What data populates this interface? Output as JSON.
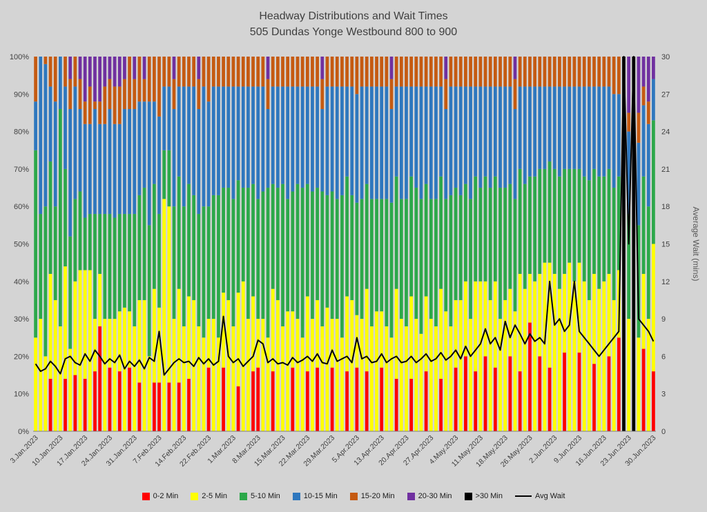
{
  "colors": {
    "background": "#D4D4D4",
    "title_text": "#3F3F3F",
    "axis_text": "#3F3F3F",
    "axis_title_text": "#595959"
  },
  "chart_data": {
    "type": "bar",
    "stacked": true,
    "percent": true,
    "line_overlay": true,
    "title": "Headway Distributions and Wait Times",
    "subtitle": "505 Dundas  Yonge Westbound 800 to 900",
    "legend_position": "bottom",
    "y_left": {
      "label": "",
      "range": [
        0,
        100
      ],
      "ticks": [
        "0%",
        "10%",
        "20%",
        "30%",
        "40%",
        "50%",
        "60%",
        "70%",
        "80%",
        "90%",
        "100%"
      ]
    },
    "y_right": {
      "label": "Average Wait (mins)",
      "range": [
        0,
        30
      ],
      "ticks": [
        0,
        3,
        6,
        9,
        12,
        15,
        18,
        21,
        24,
        27,
        30
      ]
    },
    "x_tick_labels": [
      "3.Jan.2023",
      "10.Jan.2023",
      "17.Jan.2023",
      "24.Jan.2023",
      "31.Jan.2023",
      "7.Feb.2023",
      "14.Feb.2023",
      "22.Feb.2023",
      "1.Mar.2023",
      "8.Mar.2023",
      "15.Mar.2023",
      "22.Mar.2023",
      "29.Mar.2023",
      "5.Apr.2023",
      "13.Apr.2023",
      "20.Apr.2023",
      "27.Apr.2023",
      "4.May.2023",
      "11.May.2023",
      "18.May.2023",
      "26.May.2023",
      "2.Jun.2023",
      "9.Jun.2023",
      "16.Jun.2023",
      "23.Jun.2023",
      "30.Jun.2023"
    ],
    "categories": [
      "3.Jan.2023",
      "4.Jan.2023",
      "5.Jan.2023",
      "6.Jan.2023",
      "9.Jan.2023",
      "10.Jan.2023",
      "11.Jan.2023",
      "12.Jan.2023",
      "13.Jan.2023",
      "16.Jan.2023",
      "17.Jan.2023",
      "18.Jan.2023",
      "19.Jan.2023",
      "20.Jan.2023",
      "23.Jan.2023",
      "24.Jan.2023",
      "25.Jan.2023",
      "26.Jan.2023",
      "27.Jan.2023",
      "30.Jan.2023",
      "31.Jan.2023",
      "1.Feb.2023",
      "2.Feb.2023",
      "3.Feb.2023",
      "6.Feb.2023",
      "7.Feb.2023",
      "8.Feb.2023",
      "9.Feb.2023",
      "10.Feb.2023",
      "13.Feb.2023",
      "14.Feb.2023",
      "15.Feb.2023",
      "16.Feb.2023",
      "17.Feb.2023",
      "21.Feb.2023",
      "22.Feb.2023",
      "23.Feb.2023",
      "24.Feb.2023",
      "27.Feb.2023",
      "28.Feb.2023",
      "1.Mar.2023",
      "2.Mar.2023",
      "3.Mar.2023",
      "6.Mar.2023",
      "7.Mar.2023",
      "8.Mar.2023",
      "9.Mar.2023",
      "10.Mar.2023",
      "13.Mar.2023",
      "14.Mar.2023",
      "15.Mar.2023",
      "16.Mar.2023",
      "17.Mar.2023",
      "20.Mar.2023",
      "21.Mar.2023",
      "22.Mar.2023",
      "23.Mar.2023",
      "24.Mar.2023",
      "27.Mar.2023",
      "28.Mar.2023",
      "29.Mar.2023",
      "30.Mar.2023",
      "31.Mar.2023",
      "3.Apr.2023",
      "4.Apr.2023",
      "5.Apr.2023",
      "6.Apr.2023",
      "10.Apr.2023",
      "11.Apr.2023",
      "12.Apr.2023",
      "13.Apr.2023",
      "14.Apr.2023",
      "17.Apr.2023",
      "18.Apr.2023",
      "19.Apr.2023",
      "20.Apr.2023",
      "21.Apr.2023",
      "24.Apr.2023",
      "25.Apr.2023",
      "26.Apr.2023",
      "27.Apr.2023",
      "28.Apr.2023",
      "1.May.2023",
      "2.May.2023",
      "3.May.2023",
      "4.May.2023",
      "5.May.2023",
      "8.May.2023",
      "9.May.2023",
      "10.May.2023",
      "11.May.2023",
      "12.May.2023",
      "15.May.2023",
      "16.May.2023",
      "17.May.2023",
      "18.May.2023",
      "19.May.2023",
      "23.May.2023",
      "24.May.2023",
      "25.May.2023",
      "26.May.2023",
      "29.May.2023",
      "30.May.2023",
      "31.May.2023",
      "1.Jun.2023",
      "2.Jun.2023",
      "5.Jun.2023",
      "6.Jun.2023",
      "7.Jun.2023",
      "8.Jun.2023",
      "9.Jun.2023",
      "12.Jun.2023",
      "13.Jun.2023",
      "14.Jun.2023",
      "15.Jun.2023",
      "16.Jun.2023",
      "19.Jun.2023",
      "20.Jun.2023",
      "21.Jun.2023",
      "22.Jun.2023",
      "23.Jun.2023",
      "26.Jun.2023",
      "27.Jun.2023",
      "28.Jun.2023",
      "29.Jun.2023",
      "30.Jun.2023"
    ],
    "series": [
      {
        "key": "0-2-min",
        "name": "0-2 Min",
        "color": "#FF0000"
      },
      {
        "key": "2-5-min",
        "name": "2-5 Min",
        "color": "#FFFF00"
      },
      {
        "key": "5-10-min",
        "name": "5-10 Min",
        "color": "#2CA84A"
      },
      {
        "key": "10-15-min",
        "name": "10-15 Min",
        "color": "#2E77BE"
      },
      {
        "key": "15-20-min",
        "name": "15-20 Min",
        "color": "#C55A11"
      },
      {
        "key": "20-30-min",
        "name": "20-30 Min",
        "color": "#7030A0"
      },
      {
        "key": "gt-30-min",
        "name": ">30 Min",
        "color": "#000000"
      }
    ],
    "stacks": [
      [
        0,
        25,
        50,
        13,
        12,
        0,
        0
      ],
      [
        0,
        30,
        28,
        42,
        0,
        0,
        0
      ],
      [
        0,
        20,
        40,
        38,
        2,
        0,
        0
      ],
      [
        14,
        28,
        30,
        20,
        8,
        0,
        0
      ],
      [
        0,
        35,
        25,
        28,
        12,
        0,
        0
      ],
      [
        0,
        28,
        58,
        14,
        0,
        0,
        0
      ],
      [
        14,
        30,
        26,
        22,
        8,
        0,
        0
      ],
      [
        0,
        22,
        30,
        34,
        8,
        6,
        0
      ],
      [
        15,
        25,
        22,
        30,
        8,
        0,
        0
      ],
      [
        0,
        43,
        21,
        22,
        8,
        6,
        0
      ],
      [
        14,
        29,
        14,
        25,
        6,
        12,
        0
      ],
      [
        0,
        43,
        15,
        24,
        10,
        8,
        0
      ],
      [
        16,
        14,
        28,
        28,
        2,
        12,
        0
      ],
      [
        28,
        14,
        16,
        24,
        6,
        12,
        0
      ],
      [
        0,
        30,
        28,
        24,
        10,
        8,
        0
      ],
      [
        17,
        13,
        28,
        28,
        8,
        6,
        0
      ],
      [
        0,
        30,
        27,
        25,
        10,
        8,
        0
      ],
      [
        16,
        16,
        26,
        24,
        10,
        8,
        0
      ],
      [
        0,
        33,
        25,
        28,
        8,
        6,
        0
      ],
      [
        17,
        15,
        26,
        28,
        14,
        0,
        0
      ],
      [
        0,
        28,
        30,
        28,
        8,
        6,
        0
      ],
      [
        13,
        22,
        28,
        25,
        12,
        0,
        0
      ],
      [
        0,
        35,
        30,
        23,
        6,
        6,
        0
      ],
      [
        0,
        20,
        35,
        33,
        12,
        0,
        0
      ],
      [
        13,
        25,
        28,
        22,
        12,
        0,
        0
      ],
      [
        13,
        20,
        25,
        26,
        16,
        0,
        0
      ],
      [
        0,
        62,
        13,
        17,
        8,
        0,
        0
      ],
      [
        13,
        47,
        15,
        17,
        8,
        0,
        0
      ],
      [
        0,
        30,
        30,
        26,
        8,
        6,
        0
      ],
      [
        13,
        25,
        30,
        24,
        8,
        0,
        0
      ],
      [
        0,
        28,
        32,
        32,
        8,
        0,
        0
      ],
      [
        14,
        22,
        30,
        26,
        8,
        0,
        0
      ],
      [
        0,
        35,
        28,
        29,
        8,
        0,
        0
      ],
      [
        0,
        28,
        30,
        28,
        8,
        6,
        0
      ],
      [
        0,
        25,
        35,
        32,
        8,
        0,
        0
      ],
      [
        17,
        13,
        30,
        28,
        12,
        0,
        0
      ],
      [
        0,
        30,
        33,
        29,
        8,
        0,
        0
      ],
      [
        0,
        25,
        38,
        29,
        8,
        0,
        0
      ],
      [
        17,
        20,
        28,
        27,
        8,
        0,
        0
      ],
      [
        0,
        35,
        30,
        27,
        8,
        0,
        0
      ],
      [
        0,
        28,
        34,
        30,
        8,
        0,
        0
      ],
      [
        12,
        25,
        30,
        25,
        8,
        0,
        0
      ],
      [
        0,
        40,
        25,
        27,
        8,
        0,
        0
      ],
      [
        0,
        30,
        35,
        27,
        8,
        0,
        0
      ],
      [
        16,
        20,
        30,
        26,
        8,
        0,
        0
      ],
      [
        17,
        13,
        32,
        30,
        8,
        0,
        0
      ],
      [
        0,
        30,
        34,
        28,
        8,
        0,
        0
      ],
      [
        0,
        25,
        40,
        21,
        8,
        6,
        0
      ],
      [
        16,
        22,
        28,
        26,
        8,
        0,
        0
      ],
      [
        0,
        35,
        30,
        27,
        8,
        0,
        0
      ],
      [
        0,
        28,
        38,
        26,
        8,
        0,
        0
      ],
      [
        0,
        32,
        30,
        30,
        8,
        0,
        0
      ],
      [
        17,
        15,
        32,
        28,
        8,
        0,
        0
      ],
      [
        0,
        30,
        36,
        26,
        8,
        0,
        0
      ],
      [
        0,
        25,
        40,
        27,
        8,
        0,
        0
      ],
      [
        16,
        20,
        30,
        26,
        8,
        0,
        0
      ],
      [
        0,
        30,
        34,
        28,
        8,
        0,
        0
      ],
      [
        17,
        18,
        30,
        27,
        8,
        0,
        0
      ],
      [
        0,
        28,
        36,
        22,
        8,
        6,
        0
      ],
      [
        0,
        33,
        30,
        29,
        8,
        0,
        0
      ],
      [
        17,
        13,
        34,
        28,
        8,
        0,
        0
      ],
      [
        0,
        30,
        32,
        30,
        8,
        0,
        0
      ],
      [
        0,
        25,
        38,
        29,
        8,
        0,
        0
      ],
      [
        16,
        20,
        32,
        24,
        8,
        0,
        0
      ],
      [
        0,
        35,
        28,
        29,
        8,
        0,
        0
      ],
      [
        17,
        14,
        30,
        29,
        10,
        0,
        0
      ],
      [
        0,
        30,
        32,
        30,
        8,
        0,
        0
      ],
      [
        16,
        22,
        28,
        26,
        8,
        0,
        0
      ],
      [
        0,
        28,
        34,
        30,
        8,
        0,
        0
      ],
      [
        0,
        32,
        30,
        30,
        8,
        0,
        0
      ],
      [
        17,
        15,
        30,
        30,
        8,
        0,
        0
      ],
      [
        0,
        28,
        34,
        30,
        8,
        0,
        0
      ],
      [
        0,
        25,
        36,
        25,
        8,
        6,
        0
      ],
      [
        14,
        24,
        30,
        24,
        8,
        0,
        0
      ],
      [
        0,
        30,
        32,
        30,
        8,
        0,
        0
      ],
      [
        0,
        28,
        34,
        30,
        8,
        0,
        0
      ],
      [
        14,
        22,
        32,
        24,
        8,
        0,
        0
      ],
      [
        0,
        30,
        35,
        27,
        8,
        0,
        0
      ],
      [
        0,
        26,
        36,
        30,
        8,
        0,
        0
      ],
      [
        16,
        20,
        30,
        26,
        8,
        0,
        0
      ],
      [
        0,
        30,
        32,
        30,
        8,
        0,
        0
      ],
      [
        0,
        28,
        34,
        30,
        8,
        0,
        0
      ],
      [
        14,
        24,
        30,
        24,
        8,
        0,
        0
      ],
      [
        0,
        32,
        30,
        24,
        8,
        6,
        0
      ],
      [
        0,
        28,
        35,
        29,
        8,
        0,
        0
      ],
      [
        17,
        18,
        30,
        27,
        8,
        0,
        0
      ],
      [
        0,
        35,
        28,
        29,
        8,
        0,
        0
      ],
      [
        20,
        20,
        26,
        26,
        8,
        0,
        0
      ],
      [
        0,
        30,
        32,
        30,
        8,
        0,
        0
      ],
      [
        16,
        24,
        28,
        24,
        8,
        0,
        0
      ],
      [
        0,
        40,
        25,
        27,
        8,
        0,
        0
      ],
      [
        20,
        20,
        28,
        24,
        8,
        0,
        0
      ],
      [
        0,
        35,
        30,
        27,
        8,
        0,
        0
      ],
      [
        17,
        23,
        28,
        24,
        8,
        0,
        0
      ],
      [
        0,
        30,
        35,
        27,
        8,
        0,
        0
      ],
      [
        0,
        35,
        30,
        27,
        8,
        0,
        0
      ],
      [
        20,
        18,
        28,
        26,
        8,
        0,
        0
      ],
      [
        0,
        32,
        30,
        24,
        8,
        6,
        0
      ],
      [
        16,
        26,
        28,
        22,
        8,
        0,
        0
      ],
      [
        0,
        38,
        28,
        26,
        8,
        0,
        0
      ],
      [
        29,
        13,
        26,
        24,
        8,
        0,
        0
      ],
      [
        0,
        40,
        28,
        24,
        8,
        0,
        0
      ],
      [
        20,
        22,
        28,
        22,
        8,
        0,
        0
      ],
      [
        0,
        45,
        25,
        22,
        8,
        0,
        0
      ],
      [
        17,
        28,
        27,
        20,
        8,
        0,
        0
      ],
      [
        0,
        42,
        28,
        22,
        8,
        0,
        0
      ],
      [
        0,
        38,
        30,
        24,
        8,
        0,
        0
      ],
      [
        21,
        21,
        28,
        22,
        8,
        0,
        0
      ],
      [
        0,
        45,
        25,
        22,
        8,
        0,
        0
      ],
      [
        0,
        40,
        30,
        22,
        8,
        0,
        0
      ],
      [
        21,
        24,
        25,
        22,
        8,
        0,
        0
      ],
      [
        0,
        40,
        28,
        24,
        8,
        0,
        0
      ],
      [
        0,
        35,
        32,
        25,
        8,
        0,
        0
      ],
      [
        18,
        24,
        28,
        22,
        8,
        0,
        0
      ],
      [
        0,
        38,
        30,
        24,
        8,
        0,
        0
      ],
      [
        0,
        40,
        28,
        24,
        8,
        0,
        0
      ],
      [
        20,
        22,
        28,
        22,
        8,
        0,
        0
      ],
      [
        0,
        35,
        30,
        25,
        10,
        0,
        0
      ],
      [
        25,
        18,
        25,
        22,
        10,
        0,
        0
      ],
      [
        0,
        0,
        0,
        0,
        0,
        0,
        100
      ],
      [
        0,
        30,
        28,
        22,
        5,
        15,
        0
      ],
      [
        0,
        0,
        0,
        0,
        0,
        0,
        100
      ],
      [
        0,
        25,
        30,
        22,
        8,
        15,
        0
      ],
      [
        22,
        20,
        26,
        19,
        5,
        8,
        0
      ],
      [
        0,
        30,
        30,
        22,
        6,
        12,
        0
      ],
      [
        16,
        34,
        33,
        11,
        0,
        6,
        0
      ]
    ],
    "line_series": {
      "name": "Avg Wait",
      "color": "#000000",
      "values": [
        5.4,
        4.8,
        5.0,
        5.6,
        5.2,
        4.6,
        5.8,
        6.0,
        5.5,
        5.3,
        6.2,
        5.6,
        6.5,
        6.0,
        5.4,
        5.8,
        5.5,
        6.1,
        5.0,
        5.6,
        5.2,
        5.7,
        5.0,
        5.9,
        5.6,
        8.0,
        4.5,
        5.0,
        5.5,
        5.8,
        5.5,
        5.6,
        5.2,
        5.9,
        5.4,
        5.8,
        5.3,
        5.6,
        9.2,
        6.0,
        5.5,
        5.8,
        5.2,
        5.6,
        6.0,
        7.3,
        7.0,
        5.5,
        5.8,
        5.4,
        5.5,
        5.3,
        5.9,
        5.5,
        5.7,
        6.0,
        5.6,
        6.2,
        5.5,
        5.4,
        6.5,
        5.6,
        5.8,
        6.0,
        5.5,
        7.5,
        5.8,
        6.0,
        5.5,
        5.6,
        6.2,
        5.5,
        5.8,
        6.0,
        5.5,
        5.6,
        6.0,
        5.5,
        5.8,
        6.2,
        5.6,
        5.8,
        6.3,
        5.7,
        6.0,
        6.5,
        5.8,
        6.8,
        6.0,
        6.5,
        7.0,
        8.2,
        7.0,
        7.5,
        6.5,
        8.8,
        7.5,
        8.5,
        7.8,
        7.0,
        7.8,
        7.2,
        7.5,
        7.0,
        12.0,
        8.5,
        9.0,
        8.0,
        8.5,
        12.0,
        8.0,
        7.5,
        7.0,
        6.5,
        6.0,
        6.5,
        7.0,
        7.5,
        8.0,
        30.0,
        15.0,
        30.0,
        9.0,
        8.5,
        8.0,
        7.2
      ]
    },
    "legend": [
      "0-2 Min",
      "2-5 Min",
      "5-10 Min",
      "10-15 Min",
      "15-20 Min",
      "20-30 Min",
      ">30 Min",
      "Avg Wait"
    ]
  }
}
